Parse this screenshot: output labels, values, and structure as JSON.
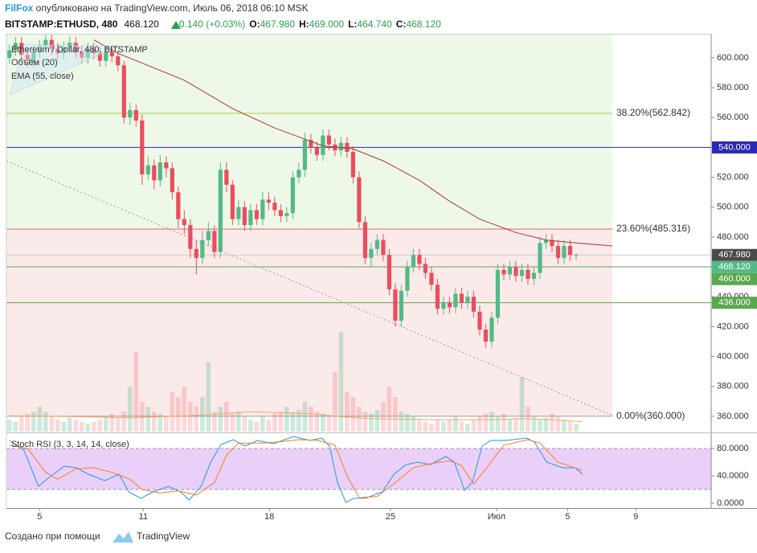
{
  "header": {
    "author": "FilFox",
    "published": " опубликовано на TradingView.com, Июль 06, 2018 06:10 MSK"
  },
  "quote": {
    "symbol": "BITSTAMP:ETHUSD, 480",
    "price": "468.120",
    "change": "+0.140 (+0.03%)",
    "open_label": "O:",
    "open": "467.980",
    "high_label": "H:",
    "high": "469.000",
    "low_label": "L:",
    "low": "464.740",
    "close_label": "C:",
    "close": "468.120"
  },
  "chart_data": [
    {
      "type": "candlestick",
      "legend": [
        "Ethereum / Dollar, 480, BITSTAMP",
        "Объём (20)",
        "EMA (55, close)"
      ],
      "xlim": [
        -0.5,
        116.4
      ],
      "ylim": [
        349.7,
        616.1
      ],
      "yticks": [
        {
          "value": 360,
          "label": "360.000"
        },
        {
          "value": 380,
          "label": "380.000"
        },
        {
          "value": 400,
          "label": "400.000"
        },
        {
          "value": 420,
          "label": "420.000"
        },
        {
          "value": 440,
          "label": "440.000"
        },
        {
          "value": 460,
          "label": "460.000"
        },
        {
          "value": 480,
          "label": "480.000"
        },
        {
          "value": 500,
          "label": "500.000"
        },
        {
          "value": 520,
          "label": "520.000"
        },
        {
          "value": 540,
          "label": "540.000"
        },
        {
          "value": 560,
          "label": "560.000"
        },
        {
          "value": 580,
          "label": "580.000"
        },
        {
          "value": 600,
          "label": "600.000"
        }
      ],
      "up_color": "#53b987",
      "down_color": "#eb4d5c",
      "open": [
        600,
        605,
        610,
        602,
        598,
        604,
        608,
        612,
        606,
        603,
        607,
        610,
        604,
        600,
        606,
        603,
        598,
        604,
        601,
        595,
        560,
        565,
        558,
        522,
        528,
        518,
        530,
        526,
        510,
        492,
        488,
        472,
        466,
        478,
        484,
        470,
        525,
        515,
        492,
        500,
        488,
        498,
        492,
        505,
        503,
        498,
        494,
        496,
        520,
        525,
        545,
        540,
        535,
        548,
        542,
        538,
        543,
        537,
        520,
        490,
        466,
        472,
        478,
        468,
        445,
        424,
        444,
        460,
        468,
        462,
        456,
        448,
        432,
        436,
        433,
        442,
        436,
        440,
        430,
        418,
        410,
        426,
        458,
        455,
        460,
        454,
        458,
        452,
        456,
        476,
        478,
        474,
        466,
        474,
        467.98
      ],
      "high": [
        609,
        614,
        614,
        606,
        608,
        612,
        616,
        616,
        610,
        611,
        614,
        614,
        608,
        610,
        610,
        607,
        608,
        608,
        605,
        598,
        570,
        569,
        562,
        534,
        532,
        535,
        534,
        530,
        514,
        498,
        492,
        478,
        484,
        490,
        488,
        530,
        530,
        518,
        505,
        504,
        502,
        502,
        510,
        510,
        507,
        502,
        500,
        524,
        530,
        550,
        549,
        544,
        552,
        552,
        546,
        547,
        547,
        541,
        524,
        494,
        476,
        482,
        482,
        472,
        449,
        448,
        464,
        472,
        472,
        466,
        460,
        452,
        440,
        440,
        446,
        446,
        444,
        444,
        434,
        422,
        430,
        462,
        462,
        464,
        464,
        462,
        462,
        460,
        480,
        482,
        482,
        478,
        478,
        478,
        469
      ],
      "low": [
        596,
        601,
        598,
        594,
        594,
        600,
        604,
        602,
        599,
        599,
        603,
        600,
        596,
        596,
        599,
        594,
        594,
        597,
        591,
        556,
        555,
        554,
        515,
        518,
        512,
        514,
        520,
        505,
        486,
        482,
        466,
        455,
        462,
        474,
        466,
        466,
        510,
        488,
        488,
        484,
        484,
        488,
        488,
        498,
        494,
        490,
        490,
        492,
        516,
        520,
        536,
        531,
        531,
        538,
        534,
        534,
        533,
        516,
        486,
        462,
        460,
        468,
        464,
        441,
        420,
        420,
        440,
        456,
        458,
        452,
        444,
        428,
        428,
        429,
        429,
        432,
        432,
        426,
        414,
        406,
        406,
        422,
        451,
        451,
        450,
        450,
        448,
        448,
        452,
        472,
        470,
        462,
        462,
        464,
        464.74
      ],
      "close": [
        605,
        610,
        602,
        598,
        604,
        608,
        612,
        606,
        603,
        607,
        610,
        604,
        600,
        606,
        603,
        598,
        604,
        601,
        595,
        560,
        565,
        558,
        522,
        528,
        518,
        530,
        526,
        510,
        492,
        488,
        472,
        466,
        478,
        484,
        470,
        525,
        515,
        492,
        500,
        488,
        498,
        492,
        505,
        503,
        498,
        494,
        496,
        520,
        525,
        545,
        540,
        535,
        548,
        542,
        538,
        543,
        537,
        520,
        490,
        466,
        472,
        478,
        468,
        445,
        424,
        444,
        460,
        468,
        462,
        456,
        448,
        432,
        436,
        433,
        442,
        436,
        440,
        430,
        418,
        410,
        426,
        458,
        455,
        460,
        454,
        458,
        452,
        456,
        476,
        478,
        474,
        466,
        474,
        467.98,
        468.12
      ],
      "volume": {
        "ylim": [
          0,
          400
        ],
        "values": [
          12,
          10,
          15,
          18,
          20,
          25,
          20,
          15,
          12,
          10,
          14,
          12,
          10,
          8,
          10,
          12,
          15,
          18,
          14,
          20,
          45,
          80,
          30,
          25,
          20,
          18,
          15,
          40,
          35,
          45,
          30,
          25,
          35,
          70,
          20,
          25,
          30,
          18,
          20,
          15,
          12,
          10,
          15,
          12,
          18,
          20,
          25,
          20,
          22,
          30,
          25,
          20,
          18,
          15,
          60,
          100,
          40,
          35,
          25,
          20,
          18,
          22,
          30,
          45,
          35,
          20,
          18,
          15,
          12,
          10,
          8,
          12,
          10,
          12,
          15,
          10,
          8,
          12,
          15,
          18,
          20,
          15,
          18,
          12,
          14,
          55,
          25,
          15,
          12,
          14,
          18,
          15,
          12,
          10,
          8
        ]
      },
      "volume_ma": {
        "color": "#f7a46b",
        "x": [
          0,
          10,
          20,
          30,
          40,
          50,
          55,
          60,
          70,
          80,
          85,
          90,
          95
        ],
        "values": [
          16,
          15,
          14,
          16,
          20,
          18,
          15,
          13,
          12,
          12,
          13,
          12,
          10
        ]
      },
      "ema": {
        "color": "#a8362f",
        "x": [
          14,
          18,
          29,
          37,
          44,
          52,
          57,
          62,
          68,
          73,
          78,
          84,
          89,
          94,
          100
        ],
        "values": [
          612,
          603,
          585,
          566,
          553,
          541,
          539,
          531,
          518,
          504,
          492,
          483,
          478,
          476,
          474
        ]
      },
      "trendline": {
        "x": [
          -0.5,
          100.1
        ],
        "values": [
          531,
          360.5
        ]
      },
      "zone_colors": [
        "#eef8e8",
        "#fbeaea"
      ],
      "fib": [
        {
          "value": 562.842,
          "label": "38.20%(562.842)",
          "color": "#9dbb3a"
        },
        {
          "value": 485.316,
          "label": "23.60%(485.316)",
          "color": "#c94a4a"
        },
        {
          "value": 360,
          "label": "0.00%(360.000)",
          "color": "#8a8a8a"
        }
      ],
      "hlines": [
        {
          "value": 540,
          "color": "#2a2ab8"
        },
        {
          "value": 467.98,
          "color": "#cccccc"
        },
        {
          "value": 460,
          "color": "#5aa84e"
        },
        {
          "value": 436,
          "color": "#5aa84e"
        }
      ],
      "price_labels": [
        {
          "value": 540,
          "label": "540.000",
          "color": "#2a2ab8"
        },
        {
          "value": 467.98,
          "label": "467.980",
          "color": "#4a4a4a"
        },
        {
          "value": 468.12,
          "label": "468.120",
          "color": "#53b987"
        },
        {
          "value": 460,
          "label": "460.000",
          "color": "#5aa84e"
        },
        {
          "value": 436,
          "label": "436.000",
          "color": "#5aa84e"
        }
      ]
    },
    {
      "type": "line",
      "title": "Stoch RSI (3, 3, 14, 14, close)",
      "xlim": [
        -0.5,
        116.4
      ],
      "ylim": [
        -7.1,
        101.2
      ],
      "yticks": [
        {
          "value": 0,
          "label": "0.0000"
        },
        {
          "value": 40,
          "label": "40.0000"
        },
        {
          "value": 80,
          "label": "80.0000"
        }
      ],
      "xticks": [
        {
          "value": 5,
          "label": "5"
        },
        {
          "value": 22.2,
          "label": "11"
        },
        {
          "value": 43.1,
          "label": "18"
        },
        {
          "value": 63.2,
          "label": "25"
        },
        {
          "value": 80.8,
          "label": "Июл"
        },
        {
          "value": 92.6,
          "label": "5"
        },
        {
          "value": 103.9,
          "label": "9"
        }
      ],
      "bands": [
        20,
        80
      ],
      "band_color": "#e6c8f8",
      "series": [
        {
          "color": "#2196f3",
          "x": [
            0,
            2.4,
            4.8,
            6.4,
            9.1,
            11.1,
            13.1,
            15.8,
            18.2,
            19.8,
            21.8,
            23.8,
            26.4,
            28.4,
            29.8,
            31.8,
            33.4,
            35.1,
            37.1,
            39.1,
            41.1,
            43.8,
            47.1,
            49.8,
            51.8,
            53.1,
            54.4,
            55.8,
            57.1,
            59.1,
            61.8,
            63.8,
            65.8,
            67.8,
            69.8,
            72.4,
            73.8,
            75.5,
            76.8,
            78.4,
            79.8,
            82.4,
            85.8,
            87.1,
            89.1,
            91.8,
            93.8,
            95.1
          ],
          "values": [
            91.8,
            77.6,
            24.7,
            36.5,
            54.1,
            51.8,
            42.4,
            32.9,
            42.4,
            16.5,
            7.1,
            16.5,
            24.7,
            16.5,
            4.7,
            24.7,
            60,
            85.9,
            92.9,
            83.5,
            91.8,
            87.1,
            97.6,
            91.8,
            95.3,
            83.5,
            30.6,
            1.2,
            7.1,
            7.1,
            16.5,
            42.4,
            56.5,
            60,
            56.5,
            68.2,
            60,
            18.8,
            30.6,
            83.5,
            91.8,
            91.8,
            95.3,
            89.4,
            60,
            51.8,
            51.8,
            42.4
          ]
        },
        {
          "color": "#ff7a1a",
          "x": [
            0,
            3,
            6,
            8,
            11,
            14,
            17,
            20,
            22,
            25,
            28,
            31,
            34,
            36,
            38,
            42,
            45,
            48,
            51,
            54,
            56,
            58,
            61,
            64,
            67,
            70,
            73,
            75,
            77,
            79,
            82,
            86,
            88,
            91,
            95
          ],
          "values": [
            85,
            80,
            45,
            35,
            50,
            52,
            45,
            35,
            20,
            15,
            18,
            12,
            30,
            70,
            88,
            88,
            90,
            93,
            92,
            85,
            40,
            8,
            10,
            30,
            52,
            58,
            62,
            55,
            28,
            50,
            85,
            93,
            88,
            60,
            48
          ]
        }
      ]
    }
  ],
  "footer": {
    "created": "Создано при помощи",
    "brand": "TradingView"
  }
}
